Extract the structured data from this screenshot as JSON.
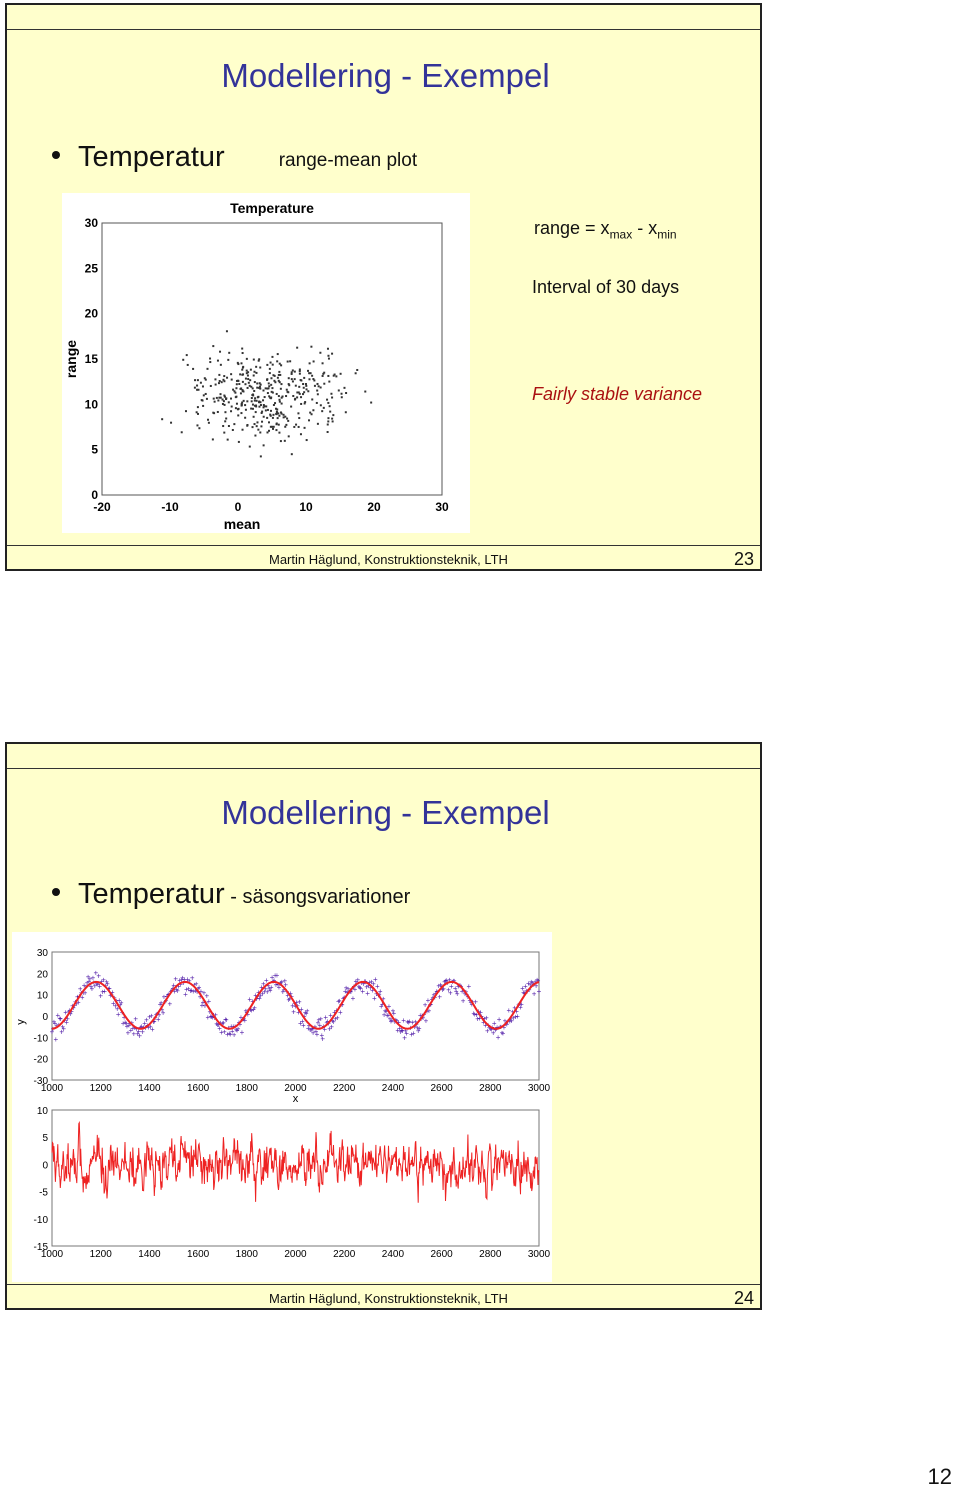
{
  "slides": [
    {
      "title": "Modellering - Exempel",
      "bullet": "Temperatur",
      "bullet_sub": "range-mean plot",
      "notes": {
        "range_prefix": "range = x",
        "range_sub1": "max",
        "range_mid": " - x",
        "range_sub2": "min",
        "interval": "Interval of 30 days",
        "variance": "Fairly stable variance"
      },
      "footer": "Martin Häglund, Konstruktionsteknik, LTH",
      "page": "23"
    },
    {
      "title": "Modellering - Exempel",
      "bullet": "Temperatur",
      "bullet_sub": " - säsongsvariationer",
      "footer": "Martin Häglund, Konstruktionsteknik, LTH",
      "page": "24"
    }
  ],
  "page_number": "12",
  "chart_data": [
    {
      "type": "scatter",
      "title": "Temperature",
      "xlabel": "mean",
      "ylabel": "range",
      "xlim": [
        -20,
        30
      ],
      "ylim": [
        0,
        30
      ],
      "xticks": [
        "-20",
        "-10",
        "0",
        "10",
        "20",
        "30"
      ],
      "yticks": [
        "0",
        "5",
        "10",
        "15",
        "20",
        "25",
        "30"
      ],
      "marker_color": "#333333",
      "x_cloud_center": 5,
      "x_cloud_spread": 18,
      "y_cloud_center": 11,
      "y_cloud_spread": 5
    },
    {
      "type": "line",
      "xlabel": "x",
      "ylabel": "y",
      "xlim": [
        1000,
        3000
      ],
      "ylim": [
        -30,
        30
      ],
      "xticks": [
        "1000",
        "1200",
        "1400",
        "1600",
        "1800",
        "2000",
        "2200",
        "2400",
        "2600",
        "2800",
        "3000"
      ],
      "yticks": [
        "30",
        "20",
        "10",
        "0",
        "-10",
        "-20",
        "-30"
      ],
      "series": [
        {
          "kind": "scatter",
          "color": "#5522aa"
        },
        {
          "kind": "line",
          "color": "#ee2222"
        }
      ],
      "period": 365,
      "mean": 5,
      "amplitude": 11
    },
    {
      "type": "line",
      "xlim": [
        1000,
        3000
      ],
      "ylim": [
        -15,
        10
      ],
      "xticks": [
        "1000",
        "1200",
        "1400",
        "1600",
        "1800",
        "2000",
        "2200",
        "2400",
        "2600",
        "2800",
        "3000"
      ],
      "yticks": [
        "10",
        "5",
        "0",
        "-5",
        "-10",
        "-15"
      ],
      "series": [
        {
          "kind": "line",
          "color": "#ee2222"
        }
      ]
    }
  ]
}
